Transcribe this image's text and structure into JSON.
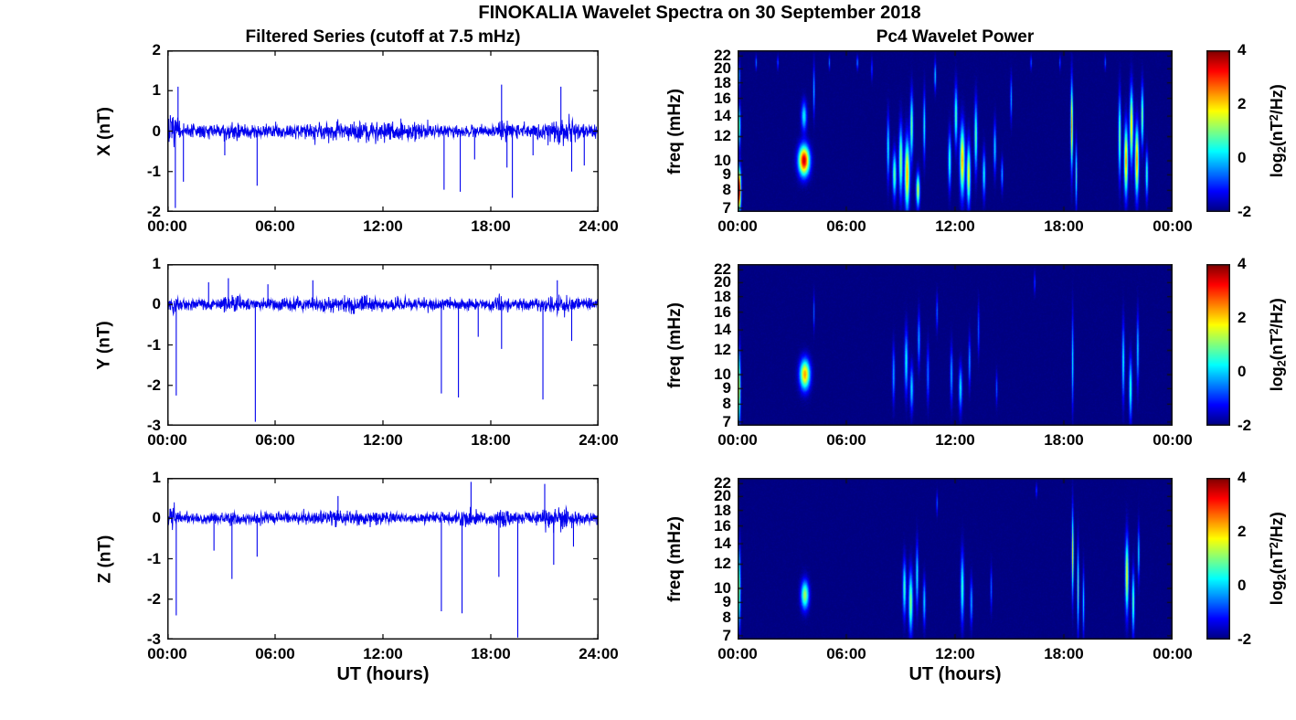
{
  "figure": {
    "title": "FINOKALIA Wavelet Spectra on 30 September 2018",
    "left_column_title": "Filtered Series (cutoff at 7.5 mHz)",
    "right_column_title": "Pc4 Wavelet Power",
    "xlabel": "UT (hours)",
    "series_color": "#0000EE",
    "axis_color": "#111111",
    "heatmap_background": "#000080",
    "colorbar": {
      "label": {
        "pre": "log",
        "sub": "2",
        "mid": "(nT",
        "sup": "2",
        "post": "/Hz)"
      },
      "ticks": [
        4,
        2,
        0,
        -2
      ],
      "clim": [
        -2,
        4
      ]
    }
  },
  "chart_data": [
    {
      "type": "line",
      "id": "x-filtered-series",
      "ylabel": "X (nT)",
      "ylim": [
        -2,
        2
      ],
      "yticks": [
        2,
        1,
        0,
        -1,
        -2
      ],
      "xlim": [
        0,
        24
      ],
      "xticks": [
        {
          "label": "00:00",
          "t": 0
        },
        {
          "label": "06:00",
          "t": 6
        },
        {
          "label": "12:00",
          "t": 12
        },
        {
          "label": "18:00",
          "t": 18
        },
        {
          "label": "24:00",
          "t": 24
        }
      ],
      "noise_std": 0.075,
      "seed": 7,
      "bursts": [
        {
          "t": 0.3,
          "w": 0.35,
          "g": 1.6
        },
        {
          "t": 3.7,
          "w": 0.5,
          "g": 0.7
        },
        {
          "t": 9.8,
          "w": 2.8,
          "g": 0.45
        },
        {
          "t": 13,
          "w": 2,
          "g": 0.45
        },
        {
          "t": 18.7,
          "w": 0.3,
          "g": 1.0
        },
        {
          "t": 22,
          "w": 1.3,
          "g": 1.2
        }
      ],
      "spikes": [
        {
          "t": 0.45,
          "v": -1.9
        },
        {
          "t": 0.6,
          "v": 1.1
        },
        {
          "t": 0.9,
          "v": -1.25
        },
        {
          "t": 3.2,
          "v": -0.6
        },
        {
          "t": 5.0,
          "v": -1.35
        },
        {
          "t": 15.4,
          "v": -1.45
        },
        {
          "t": 16.3,
          "v": -1.5
        },
        {
          "t": 17.1,
          "v": -0.7
        },
        {
          "t": 18.6,
          "v": 1.15
        },
        {
          "t": 18.9,
          "v": -0.9
        },
        {
          "t": 19.2,
          "v": -1.65
        },
        {
          "t": 20.35,
          "v": -0.6
        },
        {
          "t": 21.9,
          "v": 1.1
        },
        {
          "t": 22.5,
          "v": -1.0
        },
        {
          "t": 23.2,
          "v": -0.85
        }
      ]
    },
    {
      "type": "line",
      "id": "y-filtered-series",
      "ylabel": "Y (nT)",
      "ylim": [
        -3,
        1
      ],
      "yticks": [
        1,
        0,
        -1,
        -2,
        -3
      ],
      "xlim": [
        0,
        24
      ],
      "xticks": [
        {
          "label": "00:00",
          "t": 0
        },
        {
          "label": "06:00",
          "t": 6
        },
        {
          "label": "12:00",
          "t": 12
        },
        {
          "label": "18:00",
          "t": 18
        },
        {
          "label": "24:00",
          "t": 24
        }
      ],
      "noise_std": 0.065,
      "seed": 8,
      "bursts": [
        {
          "t": 0.3,
          "w": 0.3,
          "g": 1.3
        },
        {
          "t": 3.7,
          "w": 0.6,
          "g": 0.8
        },
        {
          "t": 10,
          "w": 2.5,
          "g": 0.45
        },
        {
          "t": 18.5,
          "w": 0.4,
          "g": 0.6
        },
        {
          "t": 21.8,
          "w": 1.0,
          "g": 0.7
        }
      ],
      "spikes": [
        {
          "t": 0.5,
          "v": -2.25
        },
        {
          "t": 2.3,
          "v": 0.55
        },
        {
          "t": 3.4,
          "v": 0.65
        },
        {
          "t": 4.9,
          "v": -2.9
        },
        {
          "t": 5.6,
          "v": 0.5
        },
        {
          "t": 8.1,
          "v": 0.6
        },
        {
          "t": 15.25,
          "v": -2.2
        },
        {
          "t": 16.2,
          "v": -2.3
        },
        {
          "t": 17.3,
          "v": -0.8
        },
        {
          "t": 18.6,
          "v": -1.1
        },
        {
          "t": 20.9,
          "v": -2.35
        },
        {
          "t": 21.7,
          "v": 0.6
        },
        {
          "t": 22.5,
          "v": -0.9
        }
      ]
    },
    {
      "type": "line",
      "id": "z-filtered-series",
      "ylabel": "Z (nT)",
      "ylim": [
        -3,
        1
      ],
      "yticks": [
        1,
        0,
        -1,
        -2,
        -3
      ],
      "xlim": [
        0,
        24
      ],
      "xticks": [
        {
          "label": "00:00",
          "t": 0
        },
        {
          "label": "06:00",
          "t": 6
        },
        {
          "label": "12:00",
          "t": 12
        },
        {
          "label": "18:00",
          "t": 18
        },
        {
          "label": "24:00",
          "t": 24
        }
      ],
      "noise_std": 0.065,
      "seed": 9,
      "bursts": [
        {
          "t": 0.3,
          "w": 0.3,
          "g": 1.1
        },
        {
          "t": 3.7,
          "w": 0.5,
          "g": 0.6
        },
        {
          "t": 10,
          "w": 2.2,
          "g": 0.5
        },
        {
          "t": 16.8,
          "w": 0.5,
          "g": 0.7
        },
        {
          "t": 18.6,
          "w": 0.4,
          "g": 0.8
        },
        {
          "t": 21.8,
          "w": 1.1,
          "g": 0.9
        }
      ],
      "spikes": [
        {
          "t": 0.5,
          "v": -2.4
        },
        {
          "t": 2.6,
          "v": -0.8
        },
        {
          "t": 3.6,
          "v": -1.5
        },
        {
          "t": 5.0,
          "v": -0.95
        },
        {
          "t": 9.5,
          "v": 0.55
        },
        {
          "t": 15.25,
          "v": -2.3
        },
        {
          "t": 16.4,
          "v": -2.35
        },
        {
          "t": 16.9,
          "v": 0.9
        },
        {
          "t": 18.45,
          "v": -1.45
        },
        {
          "t": 19.5,
          "v": -2.95
        },
        {
          "t": 21.0,
          "v": 0.85
        },
        {
          "t": 21.5,
          "v": -1.15
        },
        {
          "t": 22.6,
          "v": -0.7
        }
      ]
    },
    {
      "type": "heatmap",
      "id": "x-wavelet-power",
      "ylabel": "freq (mHz)",
      "flim": [
        6.8,
        23.0
      ],
      "yticks": [
        22,
        20,
        18,
        16,
        14,
        12,
        10,
        9,
        8,
        7
      ],
      "xticks": [
        {
          "label": "00:00",
          "t": 0
        },
        {
          "label": "06:00",
          "t": 6
        },
        {
          "label": "12:00",
          "t": 12
        },
        {
          "label": "18:00",
          "t": 18
        },
        {
          "label": "00:00",
          "t": 24
        }
      ],
      "clim": [
        -2,
        4
      ],
      "seed": 17,
      "events": [
        {
          "t": 0.06,
          "f": 8,
          "df": 2.5,
          "dt": 0.1,
          "amp": 6.2
        },
        {
          "t": 0.06,
          "f": 13,
          "df": 4,
          "dt": 0.08,
          "amp": 3.0
        },
        {
          "t": 0.06,
          "f": 19,
          "df": 4,
          "dt": 0.06,
          "amp": 1.8
        },
        {
          "t": 1.0,
          "f": 21,
          "df": 2,
          "dt": 0.04,
          "amp": 1.6
        },
        {
          "t": 2.2,
          "f": 21,
          "df": 2,
          "dt": 0.04,
          "amp": 1.4
        },
        {
          "t": 3.65,
          "f": 10,
          "df": 2.2,
          "dt": 0.3,
          "amp": 5.6
        },
        {
          "t": 3.65,
          "f": 14,
          "df": 3,
          "dt": 0.15,
          "amp": 2.2
        },
        {
          "t": 4.2,
          "f": 17,
          "df": 6,
          "dt": 0.05,
          "amp": 1.9
        },
        {
          "t": 5.05,
          "f": 21,
          "df": 2,
          "dt": 0.04,
          "amp": 1.5
        },
        {
          "t": 6.6,
          "f": 21,
          "df": 2,
          "dt": 0.05,
          "amp": 1.6
        },
        {
          "t": 7.4,
          "f": 20,
          "df": 3,
          "dt": 0.04,
          "amp": 1.3
        },
        {
          "t": 8.3,
          "f": 11,
          "df": 5,
          "dt": 0.07,
          "amp": 2.3
        },
        {
          "t": 8.65,
          "f": 9,
          "df": 3,
          "dt": 0.1,
          "amp": 2.9
        },
        {
          "t": 9.0,
          "f": 10,
          "df": 5,
          "dt": 0.1,
          "amp": 3.2
        },
        {
          "t": 9.35,
          "f": 9,
          "df": 4.5,
          "dt": 0.13,
          "amp": 4.3
        },
        {
          "t": 9.6,
          "f": 13,
          "df": 6,
          "dt": 0.08,
          "amp": 3.0
        },
        {
          "t": 9.95,
          "f": 8,
          "df": 2,
          "dt": 0.1,
          "amp": 3.5
        },
        {
          "t": 10.3,
          "f": 13,
          "df": 6,
          "dt": 0.06,
          "amp": 2.4
        },
        {
          "t": 10.9,
          "f": 19,
          "df": 4,
          "dt": 0.05,
          "amp": 2.1
        },
        {
          "t": 11.7,
          "f": 10,
          "df": 4,
          "dt": 0.08,
          "amp": 2.6
        },
        {
          "t": 12.05,
          "f": 14,
          "df": 6,
          "dt": 0.08,
          "amp": 2.8
        },
        {
          "t": 12.4,
          "f": 10,
          "df": 5,
          "dt": 0.13,
          "amp": 4.2
        },
        {
          "t": 12.75,
          "f": 9,
          "df": 4,
          "dt": 0.1,
          "amp": 3.7
        },
        {
          "t": 13.15,
          "f": 12,
          "df": 6,
          "dt": 0.08,
          "amp": 2.9
        },
        {
          "t": 13.6,
          "f": 9,
          "df": 3,
          "dt": 0.08,
          "amp": 2.3
        },
        {
          "t": 14.2,
          "f": 11,
          "df": 4,
          "dt": 0.07,
          "amp": 2.1
        },
        {
          "t": 14.6,
          "f": 9,
          "df": 2,
          "dt": 0.06,
          "amp": 1.8
        },
        {
          "t": 15.1,
          "f": 16,
          "df": 5,
          "dt": 0.05,
          "amp": 1.8
        },
        {
          "t": 16.2,
          "f": 21,
          "df": 2,
          "dt": 0.04,
          "amp": 1.5
        },
        {
          "t": 17.8,
          "f": 21,
          "df": 2,
          "dt": 0.04,
          "amp": 1.3
        },
        {
          "t": 18.45,
          "f": 13,
          "df": 8,
          "dt": 0.06,
          "amp": 4.4
        },
        {
          "t": 18.7,
          "f": 9,
          "df": 4,
          "dt": 0.05,
          "amp": 2.7
        },
        {
          "t": 20.3,
          "f": 21,
          "df": 2,
          "dt": 0.04,
          "amp": 1.4
        },
        {
          "t": 21.1,
          "f": 12,
          "df": 7,
          "dt": 0.07,
          "amp": 3.1
        },
        {
          "t": 21.45,
          "f": 10,
          "df": 5,
          "dt": 0.1,
          "amp": 4.4
        },
        {
          "t": 21.75,
          "f": 13,
          "df": 7,
          "dt": 0.09,
          "amp": 4.0
        },
        {
          "t": 22.05,
          "f": 10,
          "df": 5,
          "dt": 0.1,
          "amp": 4.5
        },
        {
          "t": 22.35,
          "f": 14,
          "df": 6,
          "dt": 0.07,
          "amp": 3.1
        },
        {
          "t": 22.6,
          "f": 9,
          "df": 3,
          "dt": 0.07,
          "amp": 2.6
        }
      ]
    },
    {
      "type": "heatmap",
      "id": "y-wavelet-power",
      "ylabel": "freq (mHz)",
      "flim": [
        6.8,
        23.0
      ],
      "yticks": [
        22,
        20,
        18,
        16,
        14,
        12,
        10,
        9,
        8,
        7
      ],
      "xticks": [
        {
          "label": "00:00",
          "t": 0
        },
        {
          "label": "06:00",
          "t": 6
        },
        {
          "label": "12:00",
          "t": 12
        },
        {
          "label": "18:00",
          "t": 18
        },
        {
          "label": "00:00",
          "t": 24
        }
      ],
      "clim": [
        -2,
        4
      ],
      "seed": 18,
      "events": [
        {
          "t": 0.06,
          "f": 9,
          "df": 5,
          "dt": 0.08,
          "amp": 3.6
        },
        {
          "t": 3.7,
          "f": 10,
          "df": 2.2,
          "dt": 0.28,
          "amp": 4.3
        },
        {
          "t": 4.2,
          "f": 16,
          "df": 4,
          "dt": 0.04,
          "amp": 1.4
        },
        {
          "t": 8.6,
          "f": 10,
          "df": 4,
          "dt": 0.07,
          "amp": 1.8
        },
        {
          "t": 9.3,
          "f": 11,
          "df": 5,
          "dt": 0.09,
          "amp": 2.3
        },
        {
          "t": 9.6,
          "f": 9,
          "df": 3,
          "dt": 0.09,
          "amp": 2.1
        },
        {
          "t": 10.0,
          "f": 13,
          "df": 5,
          "dt": 0.07,
          "amp": 1.8
        },
        {
          "t": 10.5,
          "f": 10,
          "df": 4,
          "dt": 0.07,
          "amp": 1.5
        },
        {
          "t": 11.0,
          "f": 16,
          "df": 4,
          "dt": 0.05,
          "amp": 1.4
        },
        {
          "t": 11.8,
          "f": 10,
          "df": 4,
          "dt": 0.07,
          "amp": 1.8
        },
        {
          "t": 12.3,
          "f": 9,
          "df": 3,
          "dt": 0.09,
          "amp": 2.2
        },
        {
          "t": 12.8,
          "f": 11,
          "df": 4,
          "dt": 0.06,
          "amp": 1.7
        },
        {
          "t": 13.3,
          "f": 14,
          "df": 5,
          "dt": 0.05,
          "amp": 1.4
        },
        {
          "t": 14.3,
          "f": 9,
          "df": 2,
          "dt": 0.05,
          "amp": 1.3
        },
        {
          "t": 16.4,
          "f": 20,
          "df": 3,
          "dt": 0.04,
          "amp": 1.3
        },
        {
          "t": 18.5,
          "f": 11,
          "df": 7,
          "dt": 0.05,
          "amp": 2.3
        },
        {
          "t": 21.3,
          "f": 11,
          "df": 6,
          "dt": 0.07,
          "amp": 2.3
        },
        {
          "t": 21.7,
          "f": 9,
          "df": 4,
          "dt": 0.08,
          "amp": 2.6
        },
        {
          "t": 22.1,
          "f": 12,
          "df": 6,
          "dt": 0.06,
          "amp": 2.1
        }
      ]
    },
    {
      "type": "heatmap",
      "id": "z-wavelet-power",
      "ylabel": "freq (mHz)",
      "flim": [
        6.8,
        23.0
      ],
      "yticks": [
        22,
        20,
        18,
        16,
        14,
        12,
        10,
        9,
        8,
        7
      ],
      "xticks": [
        {
          "label": "00:00",
          "t": 0
        },
        {
          "label": "06:00",
          "t": 6
        },
        {
          "label": "12:00",
          "t": 12
        },
        {
          "label": "18:00",
          "t": 18
        },
        {
          "label": "00:00",
          "t": 24
        }
      ],
      "clim": [
        -2,
        4
      ],
      "seed": 19,
      "events": [
        {
          "t": 0.06,
          "f": 10,
          "df": 6,
          "dt": 0.08,
          "amp": 3.2
        },
        {
          "t": 3.7,
          "f": 9.5,
          "df": 2,
          "dt": 0.22,
          "amp": 3.2
        },
        {
          "t": 9.2,
          "f": 10,
          "df": 4,
          "dt": 0.09,
          "amp": 2.6
        },
        {
          "t": 9.55,
          "f": 9,
          "df": 4,
          "dt": 0.11,
          "amp": 3.1
        },
        {
          "t": 9.9,
          "f": 11,
          "df": 5,
          "dt": 0.07,
          "amp": 2.3
        },
        {
          "t": 10.3,
          "f": 9,
          "df": 3,
          "dt": 0.07,
          "amp": 2.1
        },
        {
          "t": 11.0,
          "f": 19,
          "df": 3,
          "dt": 0.04,
          "amp": 1.4
        },
        {
          "t": 12.4,
          "f": 10,
          "df": 5,
          "dt": 0.09,
          "amp": 2.6
        },
        {
          "t": 12.9,
          "f": 9,
          "df": 3,
          "dt": 0.07,
          "amp": 1.8
        },
        {
          "t": 14.0,
          "f": 10,
          "df": 3,
          "dt": 0.05,
          "amp": 1.4
        },
        {
          "t": 16.5,
          "f": 21,
          "df": 2,
          "dt": 0.04,
          "amp": 1.3
        },
        {
          "t": 18.5,
          "f": 13,
          "df": 8,
          "dt": 0.05,
          "amp": 3.7
        },
        {
          "t": 18.8,
          "f": 10,
          "df": 6,
          "dt": 0.05,
          "amp": 2.9
        },
        {
          "t": 19.1,
          "f": 9,
          "df": 4,
          "dt": 0.05,
          "amp": 2.2
        },
        {
          "t": 21.5,
          "f": 11,
          "df": 6,
          "dt": 0.09,
          "amp": 3.7
        },
        {
          "t": 21.85,
          "f": 9,
          "df": 4,
          "dt": 0.07,
          "amp": 2.9
        },
        {
          "t": 22.15,
          "f": 13,
          "df": 5,
          "dt": 0.05,
          "amp": 2.2
        }
      ]
    }
  ]
}
